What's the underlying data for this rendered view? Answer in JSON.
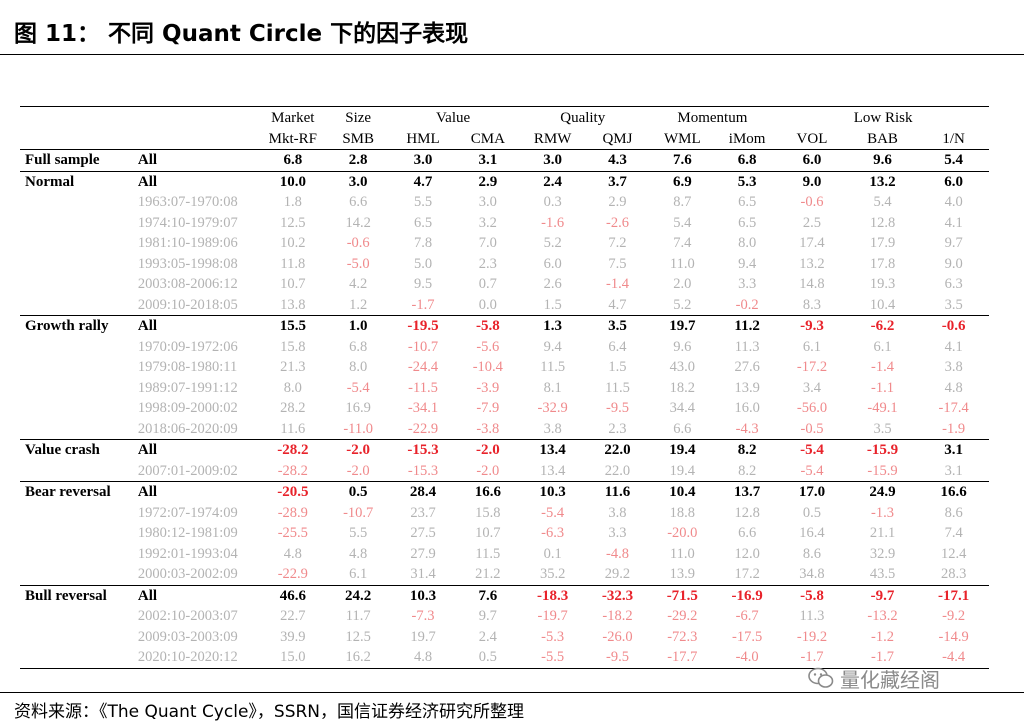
{
  "figure": {
    "title": "图 11：  不同 Quant Circle 下的因子表现",
    "source": "资料来源：《The Quant Cycle》，SSRN，国信证券经济研究所整理",
    "watermark": "量化藏经阁"
  },
  "table": {
    "group_headers": [
      "Market",
      "Size",
      "Value",
      "Quality",
      "Momentum",
      "Low Risk"
    ],
    "columns": [
      "Mkt-RF",
      "SMB",
      "HML",
      "CMA",
      "RMW",
      "QMJ",
      "WML",
      "iMom",
      "VOL",
      "BAB",
      "1/N"
    ],
    "sections": [
      {
        "condition": "Full sample",
        "rows": [
          {
            "label": "All",
            "values": [
              "6.8",
              "2.8",
              "3.0",
              "3.1",
              "3.0",
              "4.3",
              "7.6",
              "6.8",
              "6.0",
              "9.6",
              "5.4"
            ]
          }
        ]
      },
      {
        "condition": "Normal",
        "rows": [
          {
            "label": "All",
            "values": [
              "10.0",
              "3.0",
              "4.7",
              "2.9",
              "2.4",
              "3.7",
              "6.9",
              "5.3",
              "9.0",
              "13.2",
              "6.0"
            ]
          },
          {
            "label": "1963:07-1970:08",
            "values": [
              "1.8",
              "6.6",
              "5.5",
              "3.0",
              "0.3",
              "2.9",
              "8.7",
              "6.5",
              "-0.6",
              "5.4",
              "4.0"
            ]
          },
          {
            "label": "1974:10-1979:07",
            "values": [
              "12.5",
              "14.2",
              "6.5",
              "3.2",
              "-1.6",
              "-2.6",
              "5.4",
              "6.5",
              "2.5",
              "12.8",
              "4.1"
            ]
          },
          {
            "label": "1981:10-1989:06",
            "values": [
              "10.2",
              "-0.6",
              "7.8",
              "7.0",
              "5.2",
              "7.2",
              "7.4",
              "8.0",
              "17.4",
              "17.9",
              "9.7"
            ]
          },
          {
            "label": "1993:05-1998:08",
            "values": [
              "11.8",
              "-5.0",
              "5.0",
              "2.3",
              "6.0",
              "7.5",
              "11.0",
              "9.4",
              "13.2",
              "17.8",
              "9.0"
            ]
          },
          {
            "label": "2003:08-2006:12",
            "values": [
              "10.7",
              "4.2",
              "9.5",
              "0.7",
              "2.6",
              "-1.4",
              "2.0",
              "3.3",
              "14.8",
              "19.3",
              "6.3"
            ]
          },
          {
            "label": "2009:10-2018:05",
            "values": [
              "13.8",
              "1.2",
              "-1.7",
              "0.0",
              "1.5",
              "4.7",
              "5.2",
              "-0.2",
              "8.3",
              "10.4",
              "3.5"
            ]
          }
        ]
      },
      {
        "condition": "Growth rally",
        "rows": [
          {
            "label": "All",
            "values": [
              "15.5",
              "1.0",
              "-19.5",
              "-5.8",
              "1.3",
              "3.5",
              "19.7",
              "11.2",
              "-9.3",
              "-6.2",
              "-0.6"
            ]
          },
          {
            "label": "1970:09-1972:06",
            "values": [
              "15.8",
              "6.8",
              "-10.7",
              "-5.6",
              "9.4",
              "6.4",
              "9.6",
              "11.3",
              "6.1",
              "6.1",
              "4.1"
            ]
          },
          {
            "label": "1979:08-1980:11",
            "values": [
              "21.3",
              "8.0",
              "-24.4",
              "-10.4",
              "11.5",
              "1.5",
              "43.0",
              "27.6",
              "-17.2",
              "-1.4",
              "3.8"
            ]
          },
          {
            "label": "1989:07-1991:12",
            "values": [
              "8.0",
              "-5.4",
              "-11.5",
              "-3.9",
              "8.1",
              "11.5",
              "18.2",
              "13.9",
              "3.4",
              "-1.1",
              "4.8"
            ]
          },
          {
            "label": "1998:09-2000:02",
            "values": [
              "28.2",
              "16.9",
              "-34.1",
              "-7.9",
              "-32.9",
              "-9.5",
              "34.4",
              "16.0",
              "-56.0",
              "-49.1",
              "-17.4"
            ]
          },
          {
            "label": "2018:06-2020:09",
            "values": [
              "11.6",
              "-11.0",
              "-22.9",
              "-3.8",
              "3.8",
              "2.3",
              "6.6",
              "-4.3",
              "-0.5",
              "3.5",
              "-1.9"
            ]
          }
        ]
      },
      {
        "condition": "Value crash",
        "rows": [
          {
            "label": "All",
            "values": [
              "-28.2",
              "-2.0",
              "-15.3",
              "-2.0",
              "13.4",
              "22.0",
              "19.4",
              "8.2",
              "-5.4",
              "-15.9",
              "3.1"
            ]
          },
          {
            "label": "2007:01-2009:02",
            "values": [
              "-28.2",
              "-2.0",
              "-15.3",
              "-2.0",
              "13.4",
              "22.0",
              "19.4",
              "8.2",
              "-5.4",
              "-15.9",
              "3.1"
            ]
          }
        ]
      },
      {
        "condition": "Bear reversal",
        "rows": [
          {
            "label": "All",
            "values": [
              "-20.5",
              "0.5",
              "28.4",
              "16.6",
              "10.3",
              "11.6",
              "10.4",
              "13.7",
              "17.0",
              "24.9",
              "16.6"
            ]
          },
          {
            "label": "1972:07-1974:09",
            "values": [
              "-28.9",
              "-10.7",
              "23.7",
              "15.8",
              "-5.4",
              "3.8",
              "18.8",
              "12.8",
              "0.5",
              "-1.3",
              "8.6"
            ]
          },
          {
            "label": "1980:12-1981:09",
            "values": [
              "-25.5",
              "5.5",
              "27.5",
              "10.7",
              "-6.3",
              "3.3",
              "-20.0",
              "6.6",
              "16.4",
              "21.1",
              "7.4"
            ]
          },
          {
            "label": "1992:01-1993:04",
            "values": [
              "4.8",
              "4.8",
              "27.9",
              "11.5",
              "0.1",
              "-4.8",
              "11.0",
              "12.0",
              "8.6",
              "32.9",
              "12.4"
            ]
          },
          {
            "label": "2000:03-2002:09",
            "values": [
              "-22.9",
              "6.1",
              "31.4",
              "21.2",
              "35.2",
              "29.2",
              "13.9",
              "17.2",
              "34.8",
              "43.5",
              "28.3"
            ]
          }
        ]
      },
      {
        "condition": "Bull reversal",
        "rows": [
          {
            "label": "All",
            "values": [
              "46.6",
              "24.2",
              "10.3",
              "7.6",
              "-18.3",
              "-32.3",
              "-71.5",
              "-16.9",
              "-5.8",
              "-9.7",
              "-17.1"
            ]
          },
          {
            "label": "2002:10-2003:07",
            "values": [
              "22.7",
              "11.7",
              "-7.3",
              "9.7",
              "-19.7",
              "-18.2",
              "-29.2",
              "-6.7",
              "11.3",
              "-13.2",
              "-9.2"
            ]
          },
          {
            "label": "2009:03-2003:09",
            "values": [
              "39.9",
              "12.5",
              "19.7",
              "2.4",
              "-5.3",
              "-26.0",
              "-72.3",
              "-17.5",
              "-19.2",
              "-1.2",
              "-14.9"
            ]
          },
          {
            "label": "2020:10-2020:12",
            "values": [
              "15.0",
              "16.2",
              "4.8",
              "0.5",
              "-5.5",
              "-9.5",
              "-17.7",
              "-4.0",
              "-1.7",
              "-1.7",
              "-4.4"
            ]
          }
        ]
      }
    ]
  },
  "colors": {
    "negative": "#e8222a",
    "negative_faded": "#f08a8c",
    "faded_text": "#b3b3b3",
    "watermark": "#8a8a8a"
  }
}
